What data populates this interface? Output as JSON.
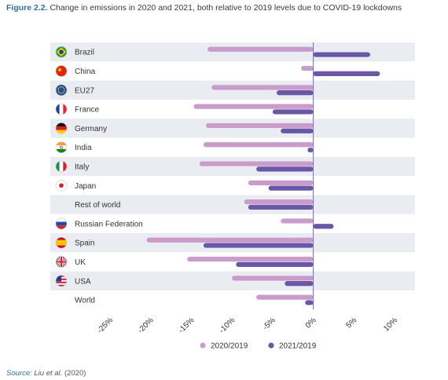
{
  "figure_label": "Figure 2.2.",
  "title_text": "Change in emissions in 2020 and 2021, both relative to 2019 levels due to COVID-19 lockdowns",
  "source_label": "Source:",
  "source_authors": "Liu et al.",
  "source_year": "(2020)",
  "colors": {
    "s2020": "#c99ccb",
    "s2021": "#6a58a6",
    "band": "#e9edf2",
    "zero": "#7b6bb5"
  },
  "chart_data": {
    "type": "bar",
    "orientation": "horizontal",
    "categories": [
      "Brazil",
      "China",
      "EU27",
      "France",
      "Germany",
      "India",
      "Italy",
      "Japan",
      "Rest of world",
      "Russian Federation",
      "Spain",
      "UK",
      "USA",
      "World"
    ],
    "flags": [
      "brazil",
      "china",
      "eu",
      "france",
      "germany",
      "india",
      "italy",
      "japan",
      "",
      "russia",
      "spain",
      "uk",
      "usa",
      ""
    ],
    "series": [
      {
        "name": "2020/2019",
        "values": [
          -13.0,
          -1.5,
          -12.5,
          -14.7,
          -13.2,
          -13.5,
          -14.0,
          -8.0,
          -8.5,
          -4.0,
          -20.5,
          -15.5,
          -10.0,
          -7.0
        ]
      },
      {
        "name": "2021/2019",
        "values": [
          7.0,
          8.2,
          -4.5,
          -5.0,
          -4.0,
          -0.7,
          -7.0,
          -5.5,
          -8.0,
          2.5,
          -13.5,
          -9.5,
          -3.5,
          -1.0
        ]
      }
    ],
    "xlim": [
      -25,
      10
    ],
    "xticks": [
      "-25%",
      "-20%",
      "-15%",
      "-10%",
      "-5%",
      "0%",
      "5%",
      "10%"
    ],
    "xtick_values": [
      -25,
      -20,
      -15,
      -10,
      -5,
      0,
      5,
      10
    ],
    "legend_position": "bottom-center",
    "grid": false
  }
}
